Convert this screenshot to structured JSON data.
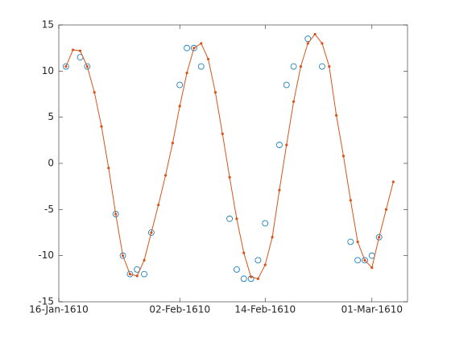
{
  "chart_data": {
    "type": "line",
    "xlim": [
      "1610-01-16",
      "1610-03-06"
    ],
    "xticks": [
      {
        "value": "1610-01-16",
        "label": "16-Jan-1610"
      },
      {
        "value": "1610-02-02",
        "label": "02-Feb-1610"
      },
      {
        "value": "1610-02-14",
        "label": "14-Feb-1610"
      },
      {
        "value": "1610-03-01",
        "label": "01-Mar-1610"
      }
    ],
    "ylim": [
      -15,
      15
    ],
    "yticks": [
      -15,
      -10,
      -5,
      0,
      5,
      10,
      15
    ],
    "series": [
      {
        "color": "#0072bd",
        "marker": "circle",
        "line": false,
        "x": [
          "1610-01-17",
          "1610-01-19",
          "1610-01-20",
          "1610-01-24",
          "1610-01-25",
          "1610-01-26",
          "1610-01-27",
          "1610-01-28",
          "1610-01-29",
          "1610-02-02",
          "1610-02-03",
          "1610-02-04",
          "1610-02-05",
          "1610-02-09",
          "1610-02-10",
          "1610-02-11",
          "1610-02-12",
          "1610-02-13",
          "1610-02-14",
          "1610-02-16",
          "1610-02-17",
          "1610-02-18",
          "1610-02-20",
          "1610-02-22",
          "1610-02-26",
          "1610-02-27",
          "1610-02-28",
          "1610-03-01",
          "1610-03-02"
        ],
        "values": [
          10.5,
          11.5,
          10.5,
          -5.5,
          -10,
          -12,
          -11.5,
          -12,
          -7.5,
          8.5,
          12.5,
          12.5,
          10.5,
          -6,
          -11.5,
          -12.5,
          -12.5,
          -10.5,
          -6.5,
          2,
          8.5,
          10.5,
          13.5,
          10.5,
          -8.5,
          -10.5,
          -10.5,
          -10,
          -8
        ]
      },
      {
        "color": "#d95319",
        "marker": "dot",
        "line": true,
        "x": [
          "1610-01-17",
          "1610-01-18",
          "1610-01-19",
          "1610-01-20",
          "1610-01-21",
          "1610-01-22",
          "1610-01-23",
          "1610-01-24",
          "1610-01-25",
          "1610-01-26",
          "1610-01-27",
          "1610-01-28",
          "1610-01-29",
          "1610-01-30",
          "1610-01-31",
          "1610-02-01",
          "1610-02-02",
          "1610-02-03",
          "1610-02-04",
          "1610-02-05",
          "1610-02-06",
          "1610-02-07",
          "1610-02-08",
          "1610-02-09",
          "1610-02-10",
          "1610-02-11",
          "1610-02-12",
          "1610-02-13",
          "1610-02-14",
          "1610-02-15",
          "1610-02-16",
          "1610-02-17",
          "1610-02-18",
          "1610-02-19",
          "1610-02-20",
          "1610-02-21",
          "1610-02-22",
          "1610-02-23",
          "1610-02-24",
          "1610-02-25",
          "1610-02-26",
          "1610-02-27",
          "1610-02-28",
          "1610-03-01",
          "1610-03-02",
          "1610-03-03",
          "1610-03-04"
        ],
        "values": [
          10.5,
          12.3,
          12.2,
          10.5,
          7.7,
          4,
          -0.5,
          -5.5,
          -10,
          -12,
          -12.2,
          -10.5,
          -7.5,
          -4.5,
          -1.3,
          2.2,
          6.2,
          9.8,
          12.5,
          13,
          11.3,
          7.7,
          3.2,
          -1.5,
          -6,
          -9.7,
          -12.3,
          -12.5,
          -11,
          -8,
          -2.9,
          2,
          6.7,
          10.5,
          13,
          14,
          13,
          10.5,
          5.2,
          0.8,
          -4,
          -8.5,
          -10.5,
          -11.3,
          -8,
          -5,
          -2
        ]
      }
    ],
    "box": true
  }
}
